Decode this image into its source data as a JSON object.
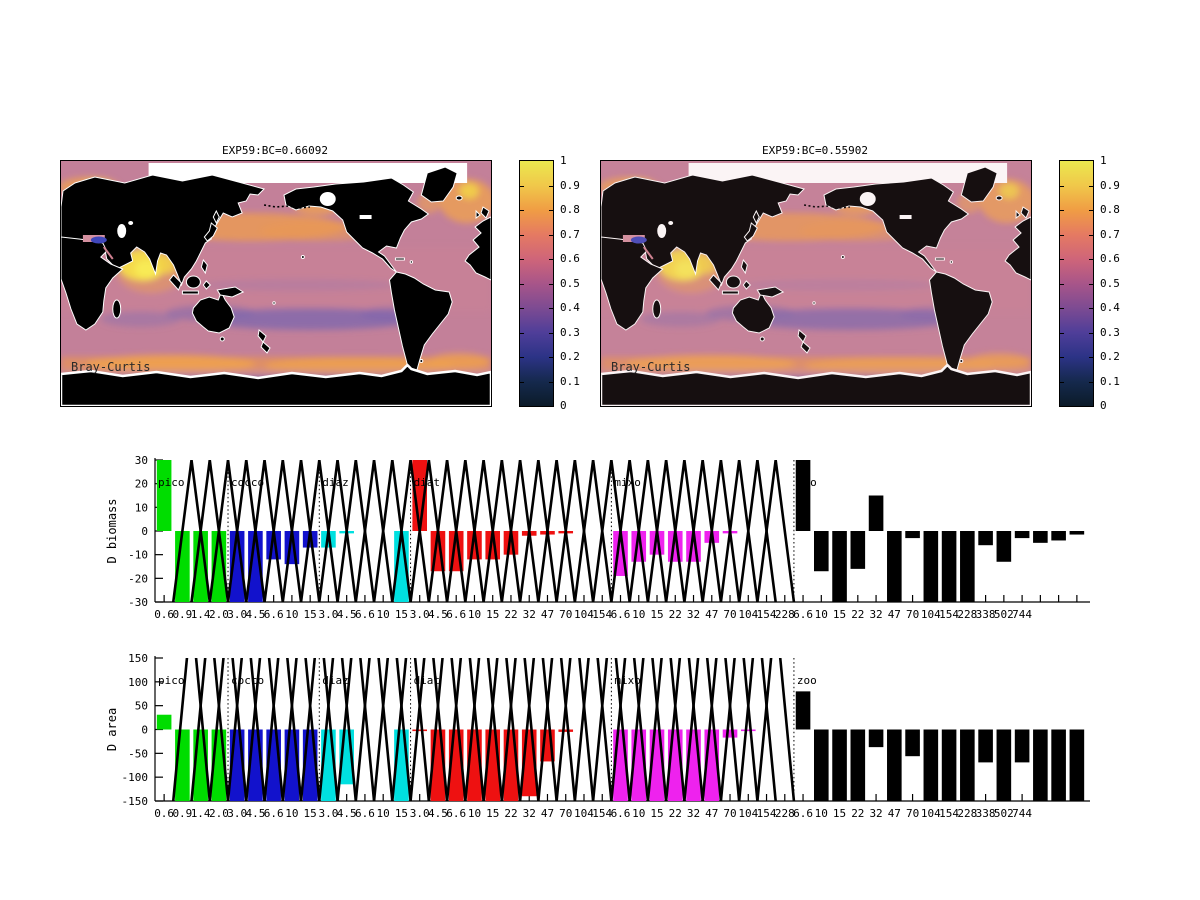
{
  "figure": {
    "maps": [
      {
        "title": "EXP59:BC=0.66092",
        "corner_label": "Bray-Curtis"
      },
      {
        "title": "EXP59:BC=0.55902",
        "corner_label": "Bray-Curtis"
      }
    ],
    "colorbar": {
      "tick_labels": [
        "1",
        "0.9",
        "0.8",
        "0.7",
        "0.6",
        "0.5",
        "0.4",
        "0.3",
        "0.2",
        "0.1",
        "0"
      ],
      "gradient": [
        "#ebe84e",
        "#f0c84a",
        "#f09d44",
        "#e57a62",
        "#cf6579",
        "#a85589",
        "#7d4b92",
        "#4f3e99",
        "#2c3386",
        "#15294d",
        "#0b1b29"
      ],
      "land_color": "#000000"
    }
  },
  "chart_data": [
    {
      "type": "bar",
      "ylabel": "D biomass",
      "ylim": [
        -30,
        30
      ],
      "yticks": [
        30,
        20,
        10,
        0,
        -10,
        -20,
        -30
      ],
      "triangle_apex": 30,
      "grid": false,
      "groups": [
        {
          "name": "pico",
          "color": "#00dd00",
          "categories": [
            "0.6",
            "0.9",
            "1.4",
            "2.0"
          ],
          "values": [
            30,
            -30,
            -30,
            -30
          ]
        },
        {
          "name": "cocco",
          "color": "#1212cc",
          "categories": [
            "3.0",
            "4.5",
            "6.6",
            "10",
            "15"
          ],
          "values": [
            -30,
            -30,
            -12,
            -14,
            -7
          ]
        },
        {
          "name": "diaz",
          "color": "#00e0e0",
          "categories": [
            "3.0",
            "4.5",
            "6.6",
            "10",
            "15"
          ],
          "values": [
            -7,
            -1,
            0,
            0,
            -30
          ]
        },
        {
          "name": "diat",
          "color": "#ee1111",
          "categories": [
            "3.0",
            "4.5",
            "6.6",
            "10",
            "15",
            "22",
            "32",
            "47",
            "70",
            "104",
            "154"
          ],
          "values": [
            30,
            -17,
            -17,
            -12,
            -12,
            -10,
            -2,
            -1.5,
            -1,
            0,
            0
          ]
        },
        {
          "name": "mixo",
          "color": "#ee22ee",
          "categories": [
            "6.6",
            "10",
            "15",
            "22",
            "32",
            "47",
            "70",
            "104",
            "154",
            "228"
          ],
          "values": [
            -19,
            -13,
            -10,
            -13,
            -13,
            -5,
            -1,
            0,
            0,
            0
          ]
        },
        {
          "name": "zoo",
          "color": "#000000",
          "categories": [
            "6.6",
            "10",
            "15",
            "22",
            "32",
            "47",
            "70",
            "104",
            "154",
            "228",
            "338",
            "502",
            "744",
            "",
            "",
            ""
          ],
          "values": [
            30,
            -17,
            -30,
            -16,
            15,
            -30,
            -3,
            -30,
            -30,
            -30,
            -6,
            -13,
            -3,
            -5,
            -4,
            -1.5
          ],
          "triangles": false
        }
      ]
    },
    {
      "type": "bar",
      "ylabel": "D area",
      "ylim": [
        -150,
        150
      ],
      "yticks": [
        150,
        100,
        50,
        0,
        -50,
        -100,
        -150
      ],
      "triangle_apex": 250,
      "grid": false,
      "groups": [
        {
          "name": "pico",
          "color": "#00dd00",
          "categories": [
            "0.6",
            "0.9",
            "1.4",
            "2.0"
          ],
          "values": [
            31,
            -150,
            -150,
            -150
          ]
        },
        {
          "name": "cocco",
          "color": "#1212cc",
          "categories": [
            "3.0",
            "4.5",
            "6.6",
            "10",
            "15"
          ],
          "values": [
            -150,
            -150,
            -150,
            -150,
            -150
          ]
        },
        {
          "name": "diaz",
          "color": "#00e0e0",
          "categories": [
            "3.0",
            "4.5",
            "6.6",
            "10",
            "15"
          ],
          "values": [
            -150,
            -115,
            0,
            0,
            -150
          ]
        },
        {
          "name": "diat",
          "color": "#ee1111",
          "categories": [
            "3.0",
            "4.5",
            "6.6",
            "10",
            "15",
            "22",
            "32",
            "47",
            "70",
            "104",
            "154"
          ],
          "values": [
            -1,
            -150,
            -150,
            -150,
            -150,
            -150,
            -140,
            -67,
            -5,
            0,
            0
          ]
        },
        {
          "name": "mixo",
          "color": "#ee22ee",
          "categories": [
            "6.6",
            "10",
            "15",
            "22",
            "32",
            "47",
            "70",
            "104",
            "154",
            "228"
          ],
          "values": [
            -150,
            -150,
            -150,
            -150,
            -150,
            -150,
            -17,
            -2,
            0,
            0
          ]
        },
        {
          "name": "zoo",
          "color": "#000000",
          "categories": [
            "6.6",
            "10",
            "15",
            "22",
            "32",
            "47",
            "70",
            "104",
            "154",
            "228",
            "338",
            "502",
            "744",
            "",
            "",
            ""
          ],
          "values": [
            80,
            -150,
            -150,
            -150,
            -37,
            -150,
            -56,
            -150,
            -150,
            -150,
            -69,
            -150,
            -69,
            -150,
            -150,
            -150
          ],
          "triangles": false
        }
      ]
    }
  ]
}
